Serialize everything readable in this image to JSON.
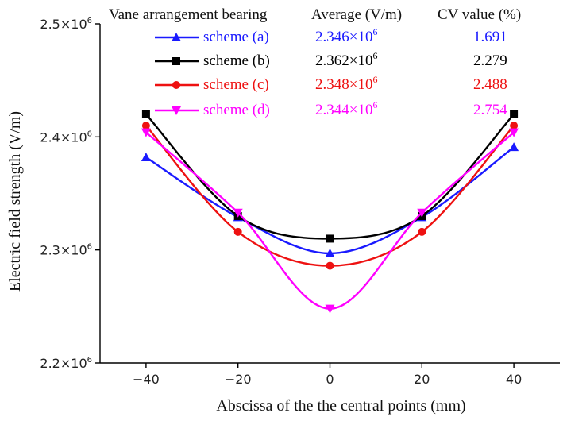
{
  "chart_data": {
    "type": "line",
    "title": "",
    "xlabel": "Abscissa of the the central points (mm)",
    "ylabel": "Electric field strength (V/m)",
    "x": [
      -40,
      -20,
      0,
      20,
      40
    ],
    "xlim": [
      -50,
      50
    ],
    "ylim": [
      2200000,
      2500000
    ],
    "xticks": [
      -40,
      -20,
      0,
      20,
      40
    ],
    "xtick_labels": [
      "−40",
      "−20",
      "0",
      "20",
      "40"
    ],
    "yticks": [
      2200000,
      2300000,
      2400000,
      2500000
    ],
    "ytick_labels": [
      {
        "mantissa": "2.2×10",
        "exp": "6"
      },
      {
        "mantissa": "2.3×10",
        "exp": "6"
      },
      {
        "mantissa": "2.4×10",
        "exp": "6"
      },
      {
        "mantissa": "2.5×10",
        "exp": "6"
      }
    ],
    "grid": false,
    "legend_position": "top",
    "legend_headers": {
      "scheme": "Vane arrangement bearing",
      "average": "Average (V/m)",
      "cv": "CV value (%)"
    },
    "series": [
      {
        "name": "scheme (a)",
        "color": "#1a1aff",
        "marker": "triangle-up",
        "values": [
          2382000,
          2329000,
          2297000,
          2329000,
          2391000
        ],
        "average_mantissa": "2.346×10",
        "average_exp": "6",
        "cv": "1.691"
      },
      {
        "name": "scheme (b)",
        "color": "#000000",
        "marker": "square",
        "values": [
          2420000,
          2330000,
          2310000,
          2330000,
          2420000
        ],
        "average_mantissa": "2.362×10",
        "average_exp": "6",
        "cv": "2.279"
      },
      {
        "name": "scheme (c)",
        "color": "#ee1111",
        "marker": "circle",
        "values": [
          2410000,
          2316000,
          2286000,
          2316000,
          2410000
        ],
        "average_mantissa": "2.348×10",
        "average_exp": "6",
        "cv": "2.488"
      },
      {
        "name": "scheme (d)",
        "color": "#ff00ff",
        "marker": "triangle-down",
        "values": [
          2404000,
          2333000,
          2248000,
          2333000,
          2404000
        ],
        "average_mantissa": "2.344×10",
        "average_exp": "6",
        "cv": "2.754"
      }
    ]
  }
}
